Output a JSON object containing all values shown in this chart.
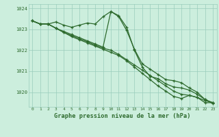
{
  "x": [
    0,
    1,
    2,
    3,
    4,
    5,
    6,
    7,
    8,
    9,
    10,
    11,
    12,
    13,
    14,
    15,
    16,
    17,
    18,
    19,
    20,
    21,
    22,
    23
  ],
  "series": [
    [
      1023.4,
      1023.25,
      1023.25,
      1023.35,
      1023.2,
      1023.1,
      1023.2,
      1023.3,
      1023.25,
      1023.6,
      1023.85,
      1023.6,
      1022.95,
      1022.05,
      1021.35,
      1021.1,
      1020.85,
      1020.6,
      1020.55,
      1020.45,
      1020.2,
      1020.0,
      1019.65,
      1019.5
    ],
    [
      1023.4,
      1023.25,
      1023.25,
      1023.05,
      1022.85,
      1022.7,
      1022.55,
      1022.4,
      1022.25,
      1022.1,
      1022.0,
      1021.8,
      1021.55,
      1021.3,
      1021.05,
      1020.8,
      1020.55,
      1020.3,
      1020.05,
      1019.9,
      1019.85,
      1019.75,
      1019.6,
      1019.5
    ],
    [
      1023.4,
      1023.25,
      1023.25,
      1023.05,
      1022.85,
      1022.65,
      1022.5,
      1022.35,
      1022.2,
      1022.05,
      1021.9,
      1021.75,
      1021.5,
      1021.2,
      1020.9,
      1020.6,
      1020.3,
      1020.05,
      1019.8,
      1019.7,
      1019.85,
      1019.75,
      1019.5,
      1019.5
    ],
    [
      1023.4,
      1023.25,
      1023.25,
      1023.05,
      1022.9,
      1022.75,
      1022.6,
      1022.45,
      1022.3,
      1022.15,
      1023.85,
      1023.65,
      1023.1,
      1022.0,
      1021.2,
      1020.75,
      1020.65,
      1020.4,
      1020.25,
      1020.2,
      1020.1,
      1019.9,
      1019.65,
      1019.45
    ]
  ],
  "line_color": "#2d6a2d",
  "marker": "+",
  "bg_color": "#cceedd",
  "grid_color": "#99ccbb",
  "axis_label_color": "#2d6a2d",
  "tick_color": "#2d6a2d",
  "xlabel": "Graphe pression niveau de la mer (hPa)",
  "ylim": [
    1019.3,
    1024.2
  ],
  "yticks": [
    1020,
    1021,
    1022,
    1023,
    1024
  ],
  "xticks": [
    0,
    1,
    2,
    3,
    4,
    5,
    6,
    7,
    8,
    9,
    10,
    11,
    12,
    13,
    14,
    15,
    16,
    17,
    18,
    19,
    20,
    21,
    22,
    23
  ]
}
